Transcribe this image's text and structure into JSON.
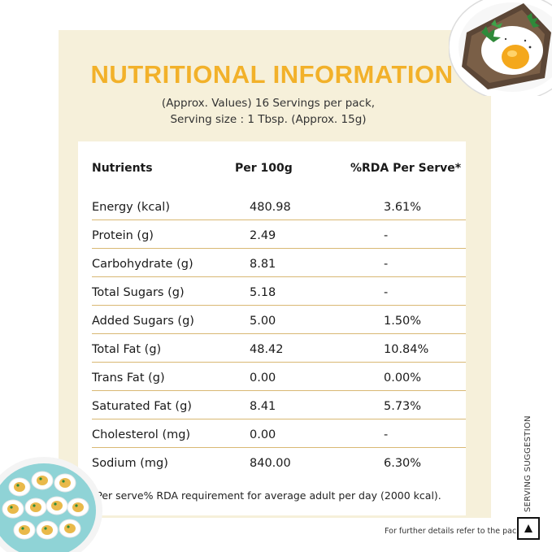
{
  "header": {
    "title": "NUTRITIONAL INFORMATION",
    "subtitle_line1": "(Approx. Values) 16 Servings per pack,",
    "subtitle_line2": "Serving size : 1 Tbsp. (Approx. 15g)"
  },
  "table": {
    "headers": [
      "Nutrients",
      "Per 100g",
      "%RDA Per Serve*"
    ],
    "rows": [
      {
        "nutrient": "Energy (kcal)",
        "per100": "480.98",
        "rda": "3.61%"
      },
      {
        "nutrient": "Protein (g)",
        "per100": "2.49",
        "rda": "-"
      },
      {
        "nutrient": "Carbohydrate (g)",
        "per100": "8.81",
        "rda": "-"
      },
      {
        "nutrient": "Total Sugars (g)",
        "per100": "5.18",
        "rda": "-"
      },
      {
        "nutrient": "Added Sugars (g)",
        "per100": "5.00",
        "rda": "1.50%"
      },
      {
        "nutrient": "Total Fat (g)",
        "per100": "48.42",
        "rda": "10.84%"
      },
      {
        "nutrient": "Trans Fat (g)",
        "per100": "0.00",
        "rda": "0.00%"
      },
      {
        "nutrient": "Saturated Fat (g)",
        "per100": "8.41",
        "rda": "5.73%"
      },
      {
        "nutrient": "Cholesterol (mg)",
        "per100": "0.00",
        "rda": "-"
      },
      {
        "nutrient": "Sodium (mg)",
        "per100": "840.00",
        "rda": "6.30%"
      }
    ]
  },
  "footnote": "*Per serve% RDA requirement for average adult per day (2000 kcal).",
  "further_details": "For further details refer to the pack.",
  "serving_suggestion": "SERVING SUGGESTION",
  "colors": {
    "title": "#f2b12a",
    "panel": "#f6f0da",
    "divider": "#d9b873",
    "plate_teal": "#8fd3d6"
  },
  "icons": [
    "fried-egg-toast-image",
    "deviled-eggs-plate-image",
    "triangle-logo-icon"
  ]
}
